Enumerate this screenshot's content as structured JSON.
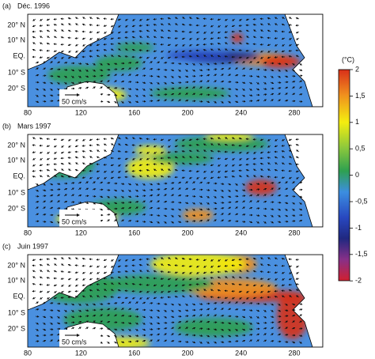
{
  "panels": [
    {
      "letter": "(a)",
      "date": "Déc. 1996",
      "scale_label": "50 cm/s"
    },
    {
      "letter": "(b)",
      "date": "Mars 1997",
      "scale_label": "50 cm/s"
    },
    {
      "letter": "(c)",
      "date": "Juin 1997",
      "scale_label": "50 cm/s"
    }
  ],
  "lat_labels": [
    "20° N",
    "10° N",
    "EQ.",
    "10° S",
    "20° S"
  ],
  "lon_labels": [
    80,
    120,
    160,
    200,
    240,
    280
  ],
  "colorbar": {
    "title": "(°C)",
    "labels": [
      "2",
      "1,5",
      "1",
      "0,5",
      "0",
      "-0,5",
      "-1",
      "-1,5",
      "-2"
    ]
  }
}
